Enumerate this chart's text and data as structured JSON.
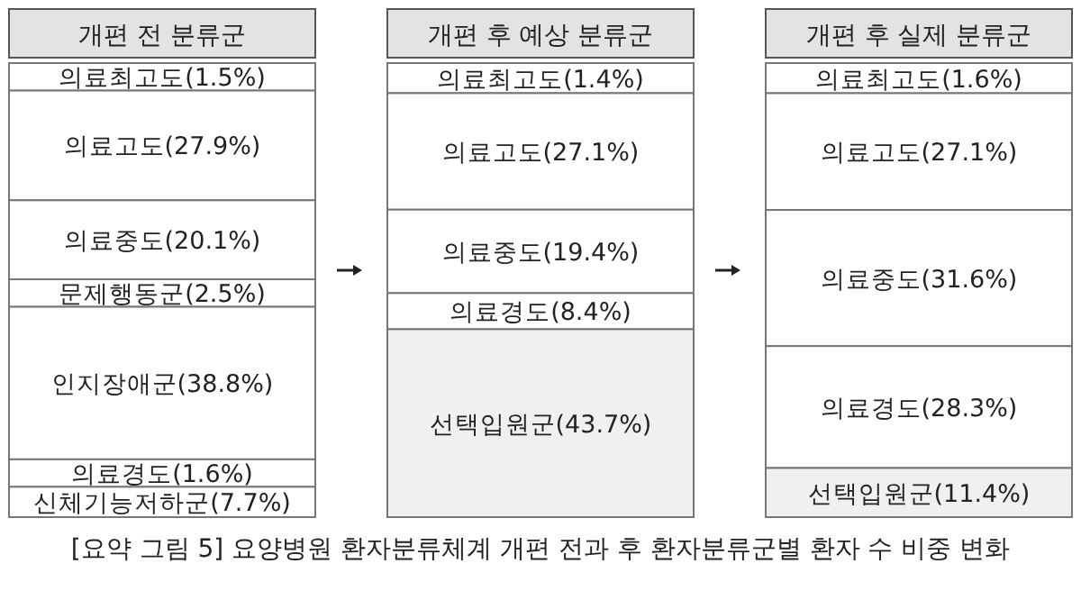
{
  "chart_data": {
    "type": "other",
    "title": "[요약 그림 5] 요양병원 환자분류체계 개편 전과 후 환자분류군별 환자 수 비중 변화",
    "categories": [
      "개편 전 분류군",
      "개편 후 예상 분류군",
      "개편 후 실제 분류군"
    ],
    "series": [
      {
        "color": "#ffffff",
        "values": [
          7.7,
          null,
          null
        ],
        "value_labels": [
          "신체기능저하군(7.7%)",
          null,
          null
        ]
      },
      {
        "color": "#f0f0f0",
        "values": [
          null,
          43.7,
          11.4
        ],
        "value_labels": [
          null,
          "선택입원군(43.7%)",
          "선택입원군(11.4%)"
        ]
      },
      {
        "color": "#ffffff",
        "values": [
          1.6,
          8.4,
          28.3
        ],
        "value_labels": [
          "의료경도(1.6%)",
          "의료경도(8.4%)",
          "의료경도(28.3%)"
        ]
      },
      {
        "color": "#ffffff",
        "values": [
          38.8,
          null,
          null
        ],
        "value_labels": [
          "인지장애군(38.8%)",
          null,
          null
        ]
      },
      {
        "color": "#ffffff",
        "values": [
          2.5,
          null,
          null
        ],
        "value_labels": [
          "문제행동군(2.5%)",
          null,
          null
        ]
      },
      {
        "color": "#ffffff",
        "values": [
          20.1,
          19.4,
          31.6
        ],
        "value_labels": [
          "의료중도(20.1%)",
          "의료중도(19.4%)",
          "의료중도(31.6%)"
        ]
      },
      {
        "color": "#ffffff",
        "values": [
          27.9,
          27.1,
          27.1
        ],
        "value_labels": [
          "의료고도(27.9%)",
          "의료고도(27.1%)",
          "의료고도(27.1%)"
        ]
      },
      {
        "color": "#ffffff",
        "values": [
          1.5,
          1.4,
          1.6
        ],
        "value_labels": [
          "의료최고도(1.5%)",
          "의료최고도(1.4%)",
          "의료최고도(1.6%)"
        ]
      }
    ]
  }
}
